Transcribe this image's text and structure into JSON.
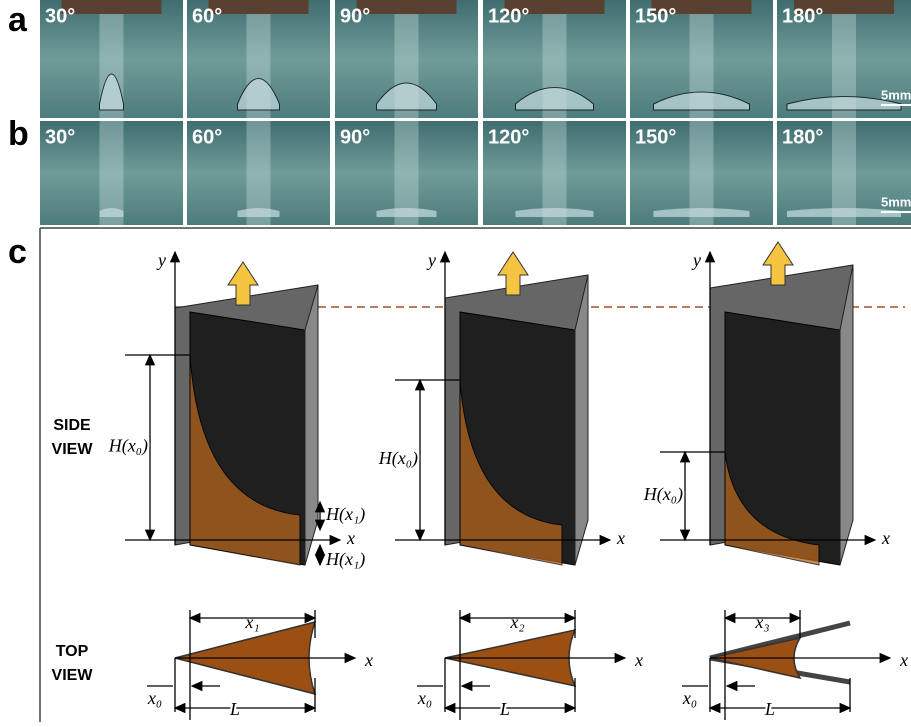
{
  "panel_a": {
    "label": "a",
    "angles": [
      "30°",
      "60°",
      "90°",
      "120°",
      "150°",
      "180°"
    ],
    "scale_bar": "5mm"
  },
  "panel_b": {
    "label": "b",
    "angles": [
      "30°",
      "60°",
      "90°",
      "120°",
      "150°",
      "180°"
    ],
    "scale_bar": "5mm"
  },
  "panel_c": {
    "label": "c",
    "side_view": [
      "SIDE",
      "VIEW"
    ],
    "top_view": [
      "TOP",
      "VIEW"
    ],
    "side": [
      {
        "y": "y",
        "x": "x",
        "h0": "H(x₀)",
        "h1a": "H(x₁)",
        "h1b": "H(x₁)"
      },
      {
        "y": "y",
        "x": "x",
        "h0": "H(x₀)"
      },
      {
        "y": "y",
        "x": "x",
        "h0": "H(x₀)"
      }
    ],
    "top": [
      {
        "xi": "x₁",
        "x0": "x₀",
        "L": "L",
        "x": "x"
      },
      {
        "xi": "x₂",
        "x0": "x₀",
        "L": "L",
        "x": "x"
      },
      {
        "xi": "x₃",
        "x0": "x₀",
        "L": "L",
        "x": "x"
      }
    ]
  }
}
